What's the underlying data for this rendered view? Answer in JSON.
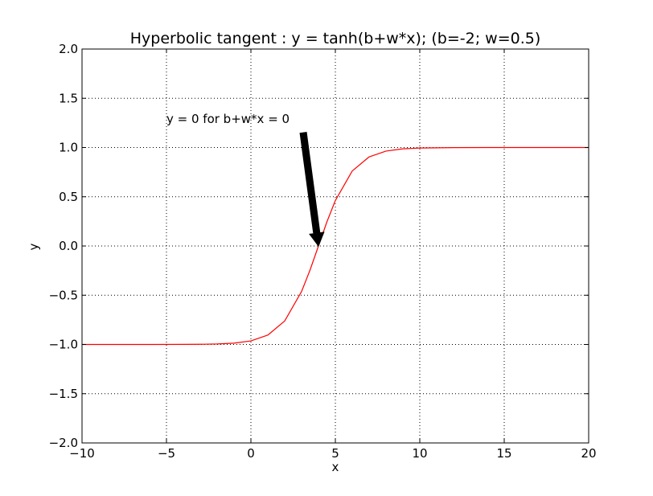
{
  "chart_data": {
    "type": "line",
    "title": "Hyperbolic tangent : y = tanh(b+w*x); (b=-2; w=0.5)",
    "xlabel": "x",
    "ylabel": "y",
    "xlim": [
      -10,
      20
    ],
    "ylim": [
      -2.0,
      2.0
    ],
    "xticks": [
      -10,
      -5,
      0,
      5,
      10,
      15,
      20
    ],
    "xtick_labels": [
      "−10",
      "−5",
      "0",
      "5",
      "10",
      "15",
      "20"
    ],
    "yticks": [
      -2.0,
      -1.5,
      -1.0,
      -0.5,
      0.0,
      0.5,
      1.0,
      1.5,
      2.0
    ],
    "ytick_labels": [
      "−2.0",
      "−1.5",
      "−1.0",
      "−0.5",
      "0.0",
      "0.5",
      "1.0",
      "1.5",
      "2.0"
    ],
    "grid": true,
    "series": [
      {
        "color": "#ff0000",
        "x": [
          -10,
          -8,
          -6,
          -4,
          -3,
          -2,
          -1,
          0,
          1,
          2,
          3,
          3.5,
          4,
          4.5,
          5,
          6,
          7,
          8,
          9,
          10,
          12,
          14,
          16,
          18,
          20
        ],
        "y": [
          -1.0,
          -1.0,
          -0.9999,
          -0.9993,
          -0.9982,
          -0.9951,
          -0.9866,
          -0.964,
          -0.9051,
          -0.7616,
          -0.4621,
          -0.2449,
          0.0,
          0.2449,
          0.4621,
          0.7616,
          0.9051,
          0.964,
          0.9866,
          0.9951,
          0.9993,
          0.9999,
          1.0,
          1.0,
          1.0
        ]
      }
    ],
    "annotation": {
      "text": "y = 0 for b+w*x = 0",
      "text_x": -5,
      "text_y": 1.25,
      "arrow_start_x": 3.1,
      "arrow_start_y": 1.15,
      "arrow_tip_x": 4,
      "arrow_tip_y": 0.0,
      "arrow_color": "#000000"
    }
  }
}
